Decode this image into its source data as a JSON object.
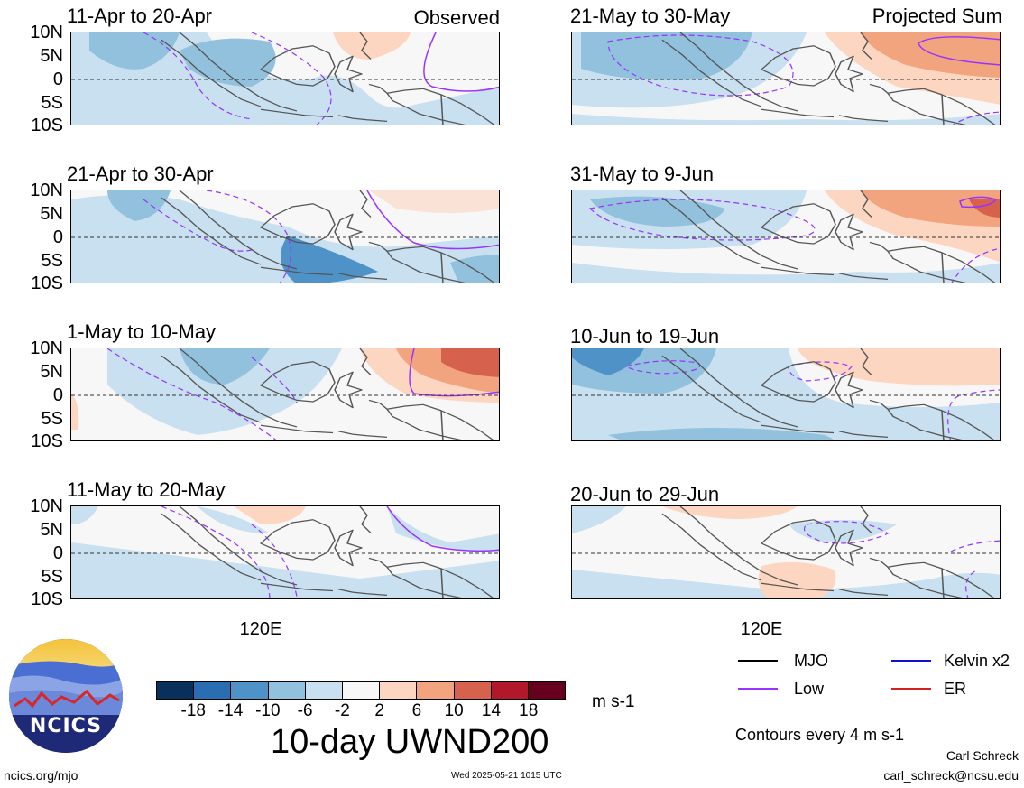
{
  "figure": {
    "title": "10-day UWND200",
    "units": "m s-1",
    "contour_note": "Contours every 4 m s-1",
    "column_headers": {
      "left": "Observed",
      "right": "Projected Sum"
    },
    "x_tick": "120E",
    "y_ticks": [
      "10N",
      "5N",
      "0",
      "5S",
      "10S"
    ]
  },
  "panels": [
    {
      "period": "11-Apr to 20-Apr",
      "column": "observed"
    },
    {
      "period": "21-Apr to 30-Apr",
      "column": "observed"
    },
    {
      "period": "1-May to 10-May",
      "column": "observed"
    },
    {
      "period": "11-May to 20-May",
      "column": "observed"
    },
    {
      "period": "21-May to 30-May",
      "column": "projected"
    },
    {
      "period": "31-May to 9-Jun",
      "column": "projected"
    },
    {
      "period": "10-Jun to 19-Jun",
      "column": "projected"
    },
    {
      "period": "20-Jun to 29-Jun",
      "column": "projected"
    }
  ],
  "colorbar": {
    "ticks": [
      "-18",
      "-14",
      "-10",
      "-6",
      "-2",
      "2",
      "6",
      "10",
      "14",
      "18"
    ],
    "colors": [
      "#08305b",
      "#2a6db3",
      "#4e92c8",
      "#92c1de",
      "#c8e0ef",
      "#f7f7f7",
      "#fcd6c0",
      "#f2a47f",
      "#d6614d",
      "#b2182b",
      "#67001f"
    ]
  },
  "legend": [
    {
      "label": "MJO",
      "color": "#000000"
    },
    {
      "label": "Kelvin x2",
      "color": "#1010d0"
    },
    {
      "label": "Low",
      "color": "#9933ff"
    },
    {
      "label": "ER",
      "color": "#d02020"
    }
  ],
  "logo": {
    "text": "NCICS"
  },
  "footer": {
    "left": "ncics.org/mjo",
    "center": "Wed 2025-05-21 1015 UTC",
    "author": "Carl Schreck",
    "email": "carl_schreck@ncsu.edu"
  }
}
